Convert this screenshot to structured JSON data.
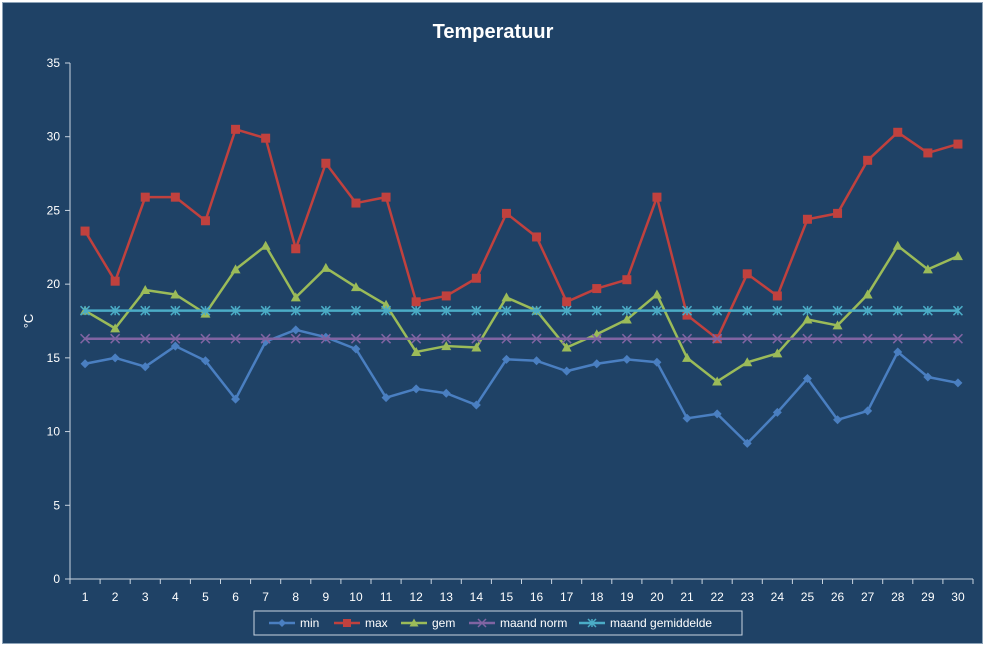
{
  "chart_data": {
    "type": "line",
    "title": "Temperatuur",
    "xlabel": "",
    "ylabel": "°C",
    "ylim": [
      0,
      35
    ],
    "yticks": [
      0,
      5,
      10,
      15,
      20,
      25,
      30,
      35
    ],
    "grid": false,
    "legend_position": "bottom",
    "categories": [
      "1",
      "2",
      "3",
      "4",
      "5",
      "6",
      "7",
      "8",
      "9",
      "10",
      "11",
      "12",
      "13",
      "14",
      "15",
      "16",
      "17",
      "18",
      "19",
      "20",
      "21",
      "22",
      "23",
      "24",
      "25",
      "26",
      "27",
      "28",
      "29",
      "30"
    ],
    "series": [
      {
        "name": "min",
        "color": "#4a7fc1",
        "marker": "diamond",
        "values": [
          14.6,
          15.0,
          14.4,
          15.8,
          14.8,
          12.2,
          16.1,
          16.9,
          16.4,
          15.6,
          12.3,
          12.9,
          12.6,
          11.8,
          14.9,
          14.8,
          14.1,
          14.6,
          14.9,
          14.7,
          10.9,
          11.2,
          9.2,
          11.3,
          13.6,
          10.8,
          11.4,
          15.4,
          13.7,
          13.3
        ]
      },
      {
        "name": "max",
        "color": "#c0413e",
        "marker": "square",
        "values": [
          23.6,
          20.2,
          25.9,
          25.9,
          24.3,
          30.5,
          29.9,
          22.4,
          28.2,
          25.5,
          25.9,
          18.8,
          19.2,
          20.4,
          24.8,
          23.2,
          18.8,
          19.7,
          20.3,
          25.9,
          17.9,
          16.3,
          20.7,
          19.2,
          24.4,
          24.8,
          28.4,
          30.3,
          28.9,
          29.5
        ]
      },
      {
        "name": "gem",
        "color": "#9bbb59",
        "marker": "triangle",
        "values": [
          18.2,
          17.0,
          19.6,
          19.3,
          18.0,
          21.0,
          22.6,
          19.1,
          21.1,
          19.8,
          18.6,
          15.4,
          15.8,
          15.7,
          19.1,
          18.2,
          15.7,
          16.6,
          17.6,
          19.3,
          15.0,
          13.4,
          14.7,
          15.3,
          17.6,
          17.2,
          19.3,
          22.6,
          21.0,
          21.9
        ]
      },
      {
        "name": "maand norm",
        "color": "#8064a2",
        "marker": "x",
        "values": [
          16.3,
          16.3,
          16.3,
          16.3,
          16.3,
          16.3,
          16.3,
          16.3,
          16.3,
          16.3,
          16.3,
          16.3,
          16.3,
          16.3,
          16.3,
          16.3,
          16.3,
          16.3,
          16.3,
          16.3,
          16.3,
          16.3,
          16.3,
          16.3,
          16.3,
          16.3,
          16.3,
          16.3,
          16.3,
          16.3
        ]
      },
      {
        "name": "maand gemiddelde",
        "color": "#4bacc6",
        "marker": "star",
        "values": [
          18.2,
          18.2,
          18.2,
          18.2,
          18.2,
          18.2,
          18.2,
          18.2,
          18.2,
          18.2,
          18.2,
          18.2,
          18.2,
          18.2,
          18.2,
          18.2,
          18.2,
          18.2,
          18.2,
          18.2,
          18.2,
          18.2,
          18.2,
          18.2,
          18.2,
          18.2,
          18.2,
          18.2,
          18.2,
          18.2
        ]
      }
    ]
  }
}
